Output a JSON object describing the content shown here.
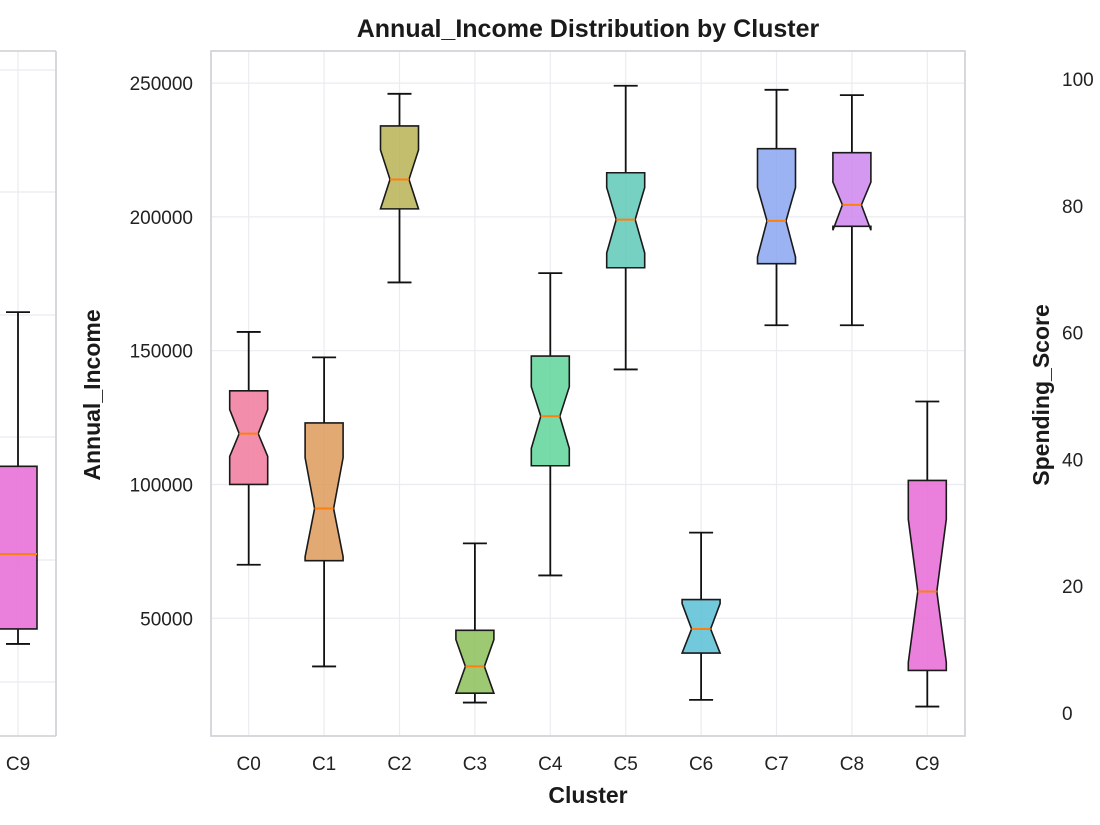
{
  "chart_data": [
    {
      "type": "box",
      "position": "left (cropped)",
      "x_tick_labels": [
        "C9"
      ],
      "boxes": [
        {
          "category": "C9",
          "whisker_low": 21500,
          "q1": 25000,
          "median": 42500,
          "q3": 63000,
          "whisker_high": 99000,
          "color": "#e86ad6"
        }
      ]
    },
    {
      "type": "box",
      "notched": true,
      "title": "Annual_Income Distribution by Cluster",
      "xlabel": "Cluster",
      "ylabel": "Annual_Income",
      "ylim": [
        6000,
        262000
      ],
      "yticks": [
        50000,
        100000,
        150000,
        200000,
        250000
      ],
      "y_tick_labels": [
        "50000",
        "100000",
        "150000",
        "200000",
        "250000"
      ],
      "grid": true,
      "categories": [
        "C0",
        "C1",
        "C2",
        "C3",
        "C4",
        "C5",
        "C6",
        "C7",
        "C8",
        "C9"
      ],
      "boxes": [
        {
          "category": "C0",
          "whisker_low": 70000,
          "q1": 100000,
          "median": 119000,
          "q3": 135000,
          "whisker_high": 157000,
          "notch_low": 110500,
          "notch_high": 128000,
          "color": "#f07a9e"
        },
        {
          "category": "C1",
          "whisker_low": 32000,
          "q1": 71500,
          "median": 91000,
          "q3": 123000,
          "whisker_high": 147500,
          "notch_low": 73000,
          "notch_high": 110000,
          "color": "#dd9a5a"
        },
        {
          "category": "C2",
          "whisker_low": 175500,
          "q1": 203000,
          "median": 214000,
          "q3": 234000,
          "whisker_high": 246000,
          "notch_low": 203000,
          "notch_high": 225000,
          "color": "#b9b155"
        },
        {
          "category": "C3",
          "whisker_low": 18500,
          "q1": 22000,
          "median": 32000,
          "q3": 45500,
          "whisker_high": 78000,
          "notch_low": 22000,
          "notch_high": 42000,
          "color": "#8cc05a"
        },
        {
          "category": "C4",
          "whisker_low": 66000,
          "q1": 107000,
          "median": 125500,
          "q3": 148000,
          "whisker_high": 179000,
          "notch_low": 113500,
          "notch_high": 136500,
          "color": "#5fd39a"
        },
        {
          "category": "C5",
          "whisker_low": 143000,
          "q1": 181000,
          "median": 199000,
          "q3": 216500,
          "whisker_high": 249000,
          "notch_low": 186500,
          "notch_high": 211000,
          "color": "#5ec9b9"
        },
        {
          "category": "C6",
          "whisker_low": 19500,
          "q1": 37000,
          "median": 46000,
          "q3": 57000,
          "whisker_high": 82000,
          "notch_low": 37000,
          "notch_high": 55500,
          "color": "#5bbfd6"
        },
        {
          "category": "C7",
          "whisker_low": 159500,
          "q1": 182500,
          "median": 198500,
          "q3": 225500,
          "whisker_high": 247500,
          "notch_low": 185000,
          "notch_high": 211000,
          "color": "#8aa6f0"
        },
        {
          "category": "C8",
          "whisker_low": 159500,
          "q1": 196500,
          "median": 204500,
          "q3": 224000,
          "whisker_high": 245500,
          "notch_low": 195000,
          "notch_high": 213000,
          "color": "#ce86ee"
        },
        {
          "category": "C9",
          "whisker_low": 17000,
          "q1": 30500,
          "median": 60000,
          "q3": 101500,
          "whisker_high": 131000,
          "notch_low": 33500,
          "notch_high": 87000,
          "color": "#e86ad6"
        }
      ]
    },
    {
      "type": "box",
      "position": "right (cropped)",
      "ylabel": "Spending_Score",
      "y_tick_labels": [
        "0",
        "20",
        "40",
        "60",
        "80",
        "100"
      ]
    }
  ],
  "colors": {
    "median_line": "#ff7f0e",
    "box_edge": "#1a1a1a",
    "grid": "#ebebf0",
    "spine": "#cfcfd4"
  }
}
